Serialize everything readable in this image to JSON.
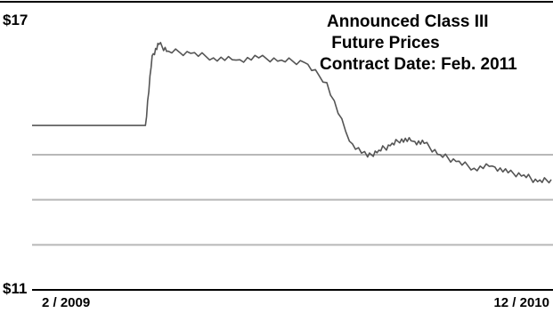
{
  "chart_data": {
    "type": "line",
    "title_lines": [
      "Announced Class III",
      " Future Prices",
      "Contract Date: Feb. 2011"
    ],
    "y_ticks": [
      "$17",
      "$11"
    ],
    "x_ticks": [
      "2 / 2009",
      "12 / 2010"
    ],
    "ylim": [
      11,
      17
    ],
    "grid": "horizontal",
    "series": [
      {
        "color": "#555555",
        "x": [
          0,
          2,
          4,
          5,
          5.3,
          5.6,
          6,
          7,
          8,
          9,
          10,
          11,
          12,
          13,
          14,
          14.8,
          15.3,
          15.8,
          16.3,
          16.8,
          17.3,
          18,
          18.7,
          19.5,
          20.3,
          21,
          21.7,
          22.3,
          22.9
        ],
        "y": [
          14.65,
          14.65,
          14.65,
          14.65,
          16.2,
          16.45,
          16.3,
          16.25,
          16.15,
          16.1,
          16.15,
          16.1,
          16.05,
          15.6,
          14.3,
          13.95,
          14.1,
          14.2,
          14.35,
          14.3,
          14.25,
          14.0,
          13.85,
          13.7,
          13.75,
          13.6,
          13.55,
          13.4,
          13.45
        ]
      }
    ]
  }
}
